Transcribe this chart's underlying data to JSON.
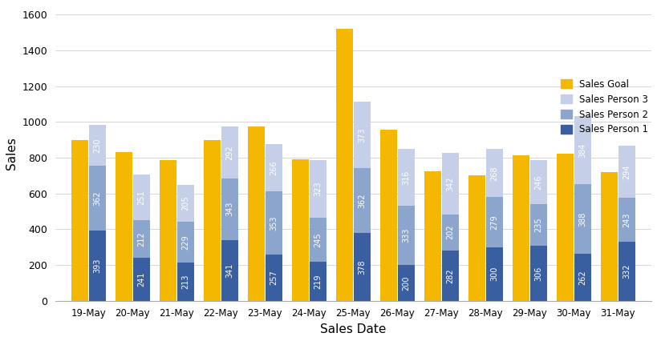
{
  "dates": [
    "19-May",
    "20-May",
    "21-May",
    "22-May",
    "23-May",
    "24-May",
    "25-May",
    "26-May",
    "27-May",
    "28-May",
    "29-May",
    "30-May",
    "31-May"
  ],
  "sales_person_1": [
    393,
    241,
    213,
    341,
    257,
    219,
    378,
    200,
    282,
    300,
    306,
    262,
    332
  ],
  "sales_person_2": [
    362,
    212,
    229,
    343,
    353,
    245,
    362,
    333,
    202,
    279,
    235,
    388,
    243
  ],
  "sales_person_3": [
    230,
    251,
    205,
    292,
    266,
    323,
    373,
    316,
    342,
    268,
    246,
    384,
    294
  ],
  "sales_goal": [
    900,
    830,
    785,
    900,
    975,
    790,
    1520,
    955,
    725,
    700,
    815,
    820,
    720
  ],
  "color_sp1": "#3a5fa0",
  "color_sp2": "#8ca5cc",
  "color_sp3": "#c5d0e8",
  "color_goal": "#f5b800",
  "xlabel": "Sales Date",
  "ylabel": "Sales",
  "ylim": [
    0,
    1650
  ],
  "yticks": [
    0,
    200,
    400,
    600,
    800,
    1000,
    1200,
    1400,
    1600
  ],
  "bar_width": 0.38,
  "label_fontsize": 7.0,
  "axis_label_fontsize": 11
}
